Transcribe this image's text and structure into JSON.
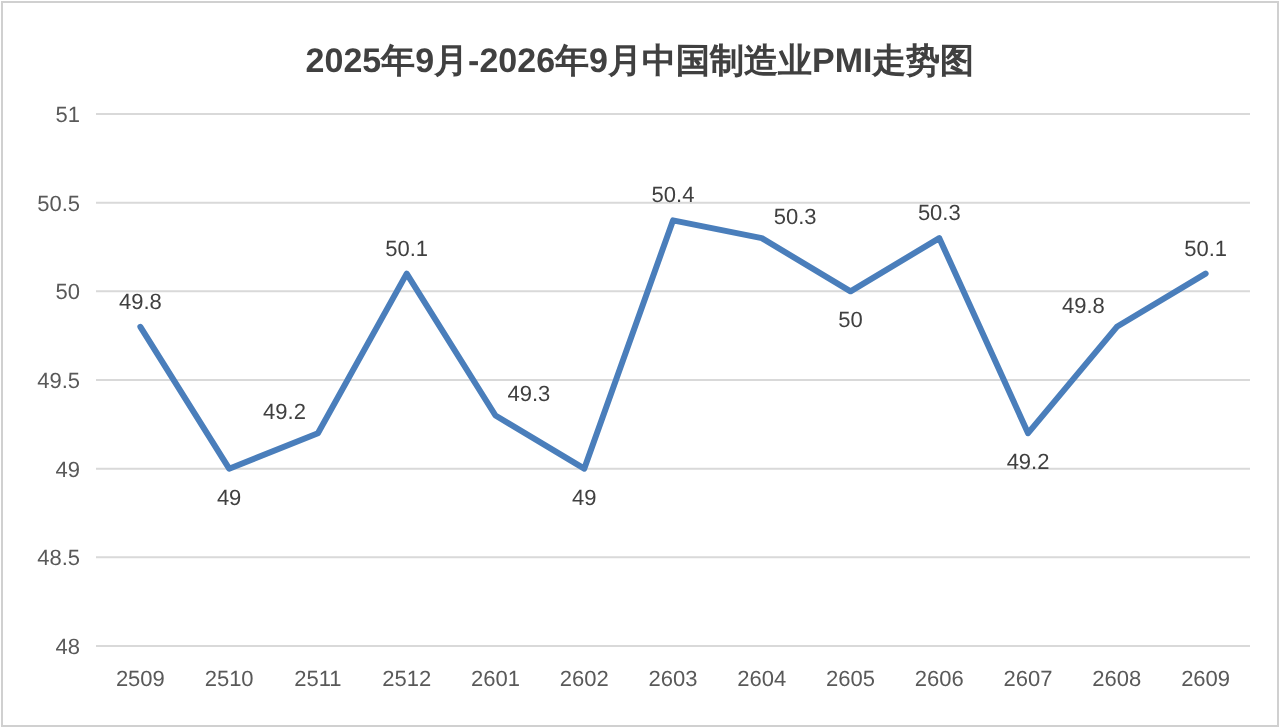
{
  "chart_data": {
    "type": "line",
    "title": "2025年9月-2026年9月中国制造业PMI走势图",
    "categories": [
      "2509",
      "2510",
      "2511",
      "2512",
      "2601",
      "2602",
      "2603",
      "2604",
      "2605",
      "2606",
      "2607",
      "2608",
      "2609"
    ],
    "series": [
      {
        "color": "#4a7ebb",
        "values": [
          49.8,
          49,
          49.2,
          50.1,
          49.3,
          49,
          50.4,
          50.3,
          50,
          50.3,
          49.2,
          49.8,
          50.1
        ]
      }
    ],
    "ylim": [
      48,
      51
    ],
    "yticks": [
      48,
      48.5,
      49,
      49.5,
      50,
      50.5,
      51
    ],
    "grid": "y",
    "data_labels": true,
    "marker": "none",
    "line_style": "solid"
  }
}
